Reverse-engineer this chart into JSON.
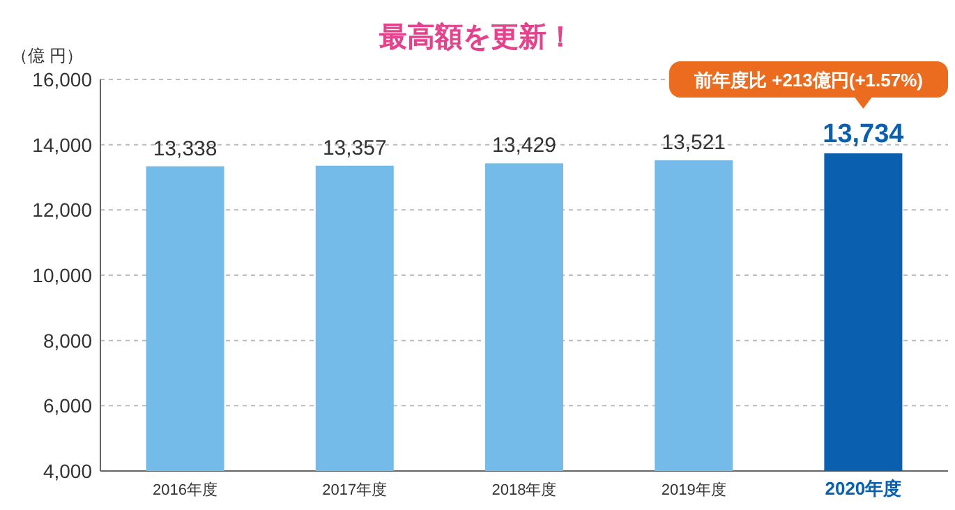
{
  "chart_data": {
    "type": "bar",
    "title": "最高額を更新！",
    "ylabel": "（億 円）",
    "categories": [
      "2016年度",
      "2017年度",
      "2018年度",
      "2019年度",
      "2020年度"
    ],
    "values": [
      13338,
      13357,
      13429,
      13521,
      13734
    ],
    "colors": [
      "#74bbe9",
      "#74bbe9",
      "#74bbe9",
      "#74bbe9",
      "#0a5fae"
    ],
    "ylim": [
      4000,
      16000
    ],
    "yticks": [
      {
        "value": 4000,
        "label": "4,000"
      },
      {
        "value": 6000,
        "label": "6,000"
      },
      {
        "value": 8000,
        "label": "8,000"
      },
      {
        "value": 10000,
        "label": "10,000"
      },
      {
        "value": 12000,
        "label": "12,000"
      },
      {
        "value": 14000,
        "label": "14,000"
      },
      {
        "value": 16000,
        "label": "16,000"
      }
    ],
    "grid": "y",
    "value_labels": [
      "13,338",
      "13,357",
      "13,429",
      "13,521",
      "13,734"
    ],
    "annotations": [
      "前年度比 +213億円(+1.57%)"
    ]
  }
}
